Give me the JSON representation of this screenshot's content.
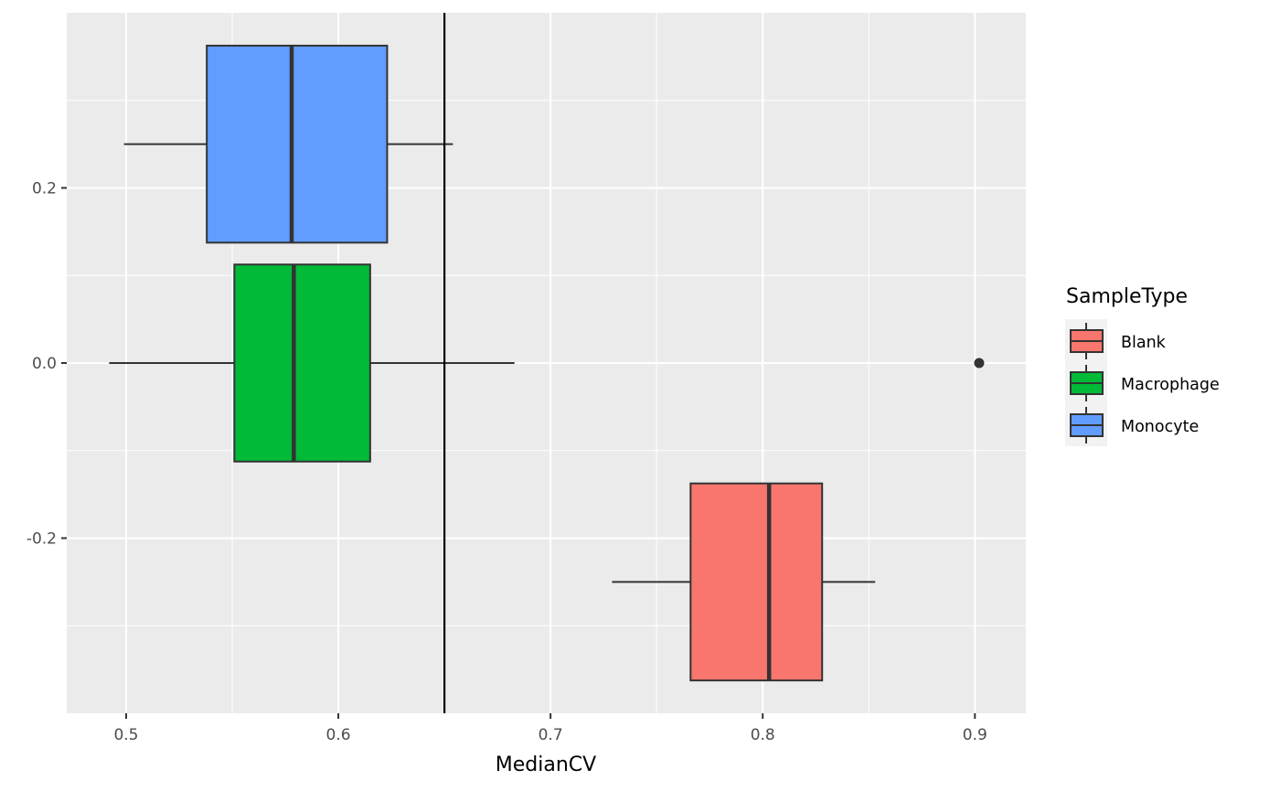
{
  "chart_data": {
    "type": "boxplot",
    "orientation": "horizontal",
    "xlabel": "MedianCV",
    "ylabel": "",
    "xlim": [
      0.472,
      0.924
    ],
    "ylim": [
      -0.4,
      0.4
    ],
    "x_ticks": [
      {
        "value": 0.5,
        "label": "0.5"
      },
      {
        "value": 0.6,
        "label": "0.6"
      },
      {
        "value": 0.7,
        "label": "0.7"
      },
      {
        "value": 0.8,
        "label": "0.8"
      },
      {
        "value": 0.9,
        "label": "0.9"
      }
    ],
    "y_ticks": [
      {
        "value": 0.2,
        "label": "0.2"
      },
      {
        "value": 0.0,
        "label": "0.0"
      },
      {
        "value": -0.2,
        "label": "-0.2"
      }
    ],
    "grid": true,
    "reference_line": {
      "orientation": "vertical",
      "x": 0.65,
      "color": "#000000"
    },
    "legend": {
      "title": "SampleType",
      "position": "right",
      "entries": [
        {
          "label": "Blank",
          "color": "#F8766D"
        },
        {
          "label": "Macrophage",
          "color": "#00BA38"
        },
        {
          "label": "Monocyte",
          "color": "#619CFF"
        }
      ]
    },
    "series": [
      {
        "name": "Monocyte",
        "color": "#619CFF",
        "y_center": 0.25,
        "y_low": 0.1375,
        "y_high": 0.3625,
        "min": 0.499,
        "q1": 0.538,
        "median": 0.578,
        "q3": 0.623,
        "max": 0.654,
        "outliers": []
      },
      {
        "name": "Macrophage",
        "color": "#00BA38",
        "y_center": 0.0,
        "y_low": -0.1125,
        "y_high": 0.1125,
        "min": 0.492,
        "q1": 0.551,
        "median": 0.579,
        "q3": 0.615,
        "max": 0.683,
        "outliers": [
          0.902
        ]
      },
      {
        "name": "Blank",
        "color": "#F8766D",
        "y_center": -0.25,
        "y_low": -0.3625,
        "y_high": -0.1375,
        "min": 0.729,
        "q1": 0.766,
        "median": 0.803,
        "q3": 0.828,
        "max": 0.853,
        "outliers": []
      }
    ]
  }
}
